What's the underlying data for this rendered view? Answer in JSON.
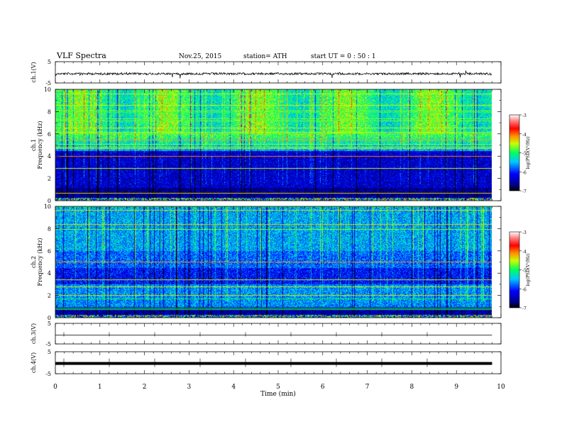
{
  "header": {
    "title": "VLF  Spectra",
    "date": "Nov.25, 2015",
    "station": "station= ATH",
    "start": "start  UT =   0 : 50 : 1"
  },
  "chart_data": [
    {
      "type": "line",
      "panel": "ch1",
      "ylabel": "ch.1(V)",
      "yticks": [
        "5",
        "-5"
      ],
      "ylim": [
        -5,
        5
      ],
      "trace_level": 0.0
    },
    {
      "type": "heatmap",
      "panel": "spec1",
      "ylabel": "ch.1",
      "ylabel2": "Frequency  (kHz)",
      "yticks": [
        "0",
        "2",
        "4",
        "6",
        "8",
        "10"
      ],
      "ylim": [
        0,
        10
      ],
      "colorbar": {
        "label": "log(PSD(V²/Hz)",
        "ticks": [
          "-3",
          "-4",
          "-5",
          "-6",
          "-7"
        ],
        "range": [
          -7,
          -3
        ]
      }
    },
    {
      "type": "heatmap",
      "panel": "spec2",
      "ylabel": "ch.2",
      "ylabel2": "Frequency  (kHz)",
      "yticks": [
        "0",
        "2",
        "4",
        "6",
        "8",
        "10"
      ],
      "ylim": [
        0,
        10
      ],
      "colorbar": {
        "label": "log(PSD(V²/Hz)",
        "ticks": [
          "-3",
          "-4",
          "-5",
          "-6",
          "-7"
        ],
        "range": [
          -7,
          -3
        ]
      }
    },
    {
      "type": "line",
      "panel": "ch3",
      "ylabel": "ch.3(V)",
      "yticks": [
        "5",
        "-5"
      ],
      "ylim": [
        -5,
        5
      ],
      "trace_level": 0.0
    },
    {
      "type": "line",
      "panel": "ch4",
      "ylabel": "ch.4(V)",
      "yticks": [
        "5",
        "-5"
      ],
      "ylim": [
        -5,
        5
      ],
      "trace_level": 0.0
    }
  ],
  "xaxis": {
    "label": "Time  (min)",
    "ticks": [
      "0",
      "1",
      "2",
      "3",
      "4",
      "5",
      "6",
      "7",
      "8",
      "9",
      "10"
    ],
    "xlim": [
      0,
      10
    ],
    "data_end": 9.8
  }
}
